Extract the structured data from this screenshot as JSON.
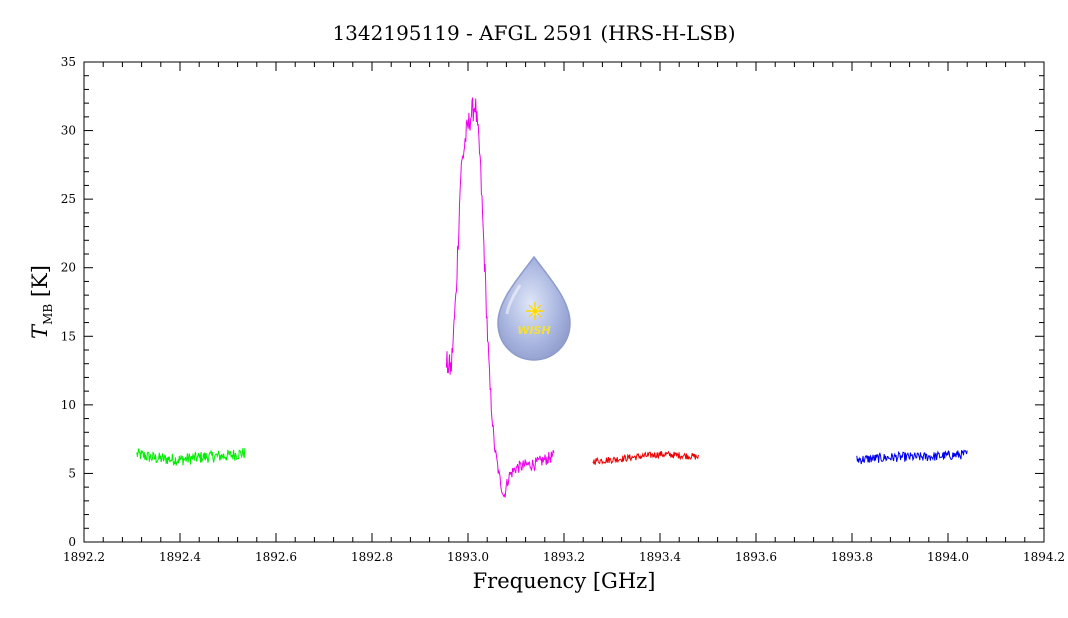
{
  "chart_data": {
    "type": "line",
    "title": "1342195119 - AFGL 2591 (HRS-H-LSB)",
    "xlabel": "Frequency [GHz]",
    "ylabel_main": "T",
    "ylabel_sub": "MB",
    "ylabel_unit": " [K]",
    "xlim": [
      1892.2,
      1894.2
    ],
    "ylim": [
      0,
      35
    ],
    "xticks": [
      1892.2,
      1892.4,
      1892.6,
      1892.8,
      1893.0,
      1893.2,
      1893.4,
      1893.6,
      1893.8,
      1894.0,
      1894.2
    ],
    "xtick_labels": [
      "1892.2",
      "1892.4",
      "1892.6",
      "1892.8",
      "1893.0",
      "1893.2",
      "1893.4",
      "1893.6",
      "1893.8",
      "1894.0",
      "1894.2"
    ],
    "yticks": [
      0,
      5,
      10,
      15,
      20,
      25,
      30,
      35
    ],
    "ytick_labels": [
      "0",
      "5",
      "10",
      "15",
      "20",
      "25",
      "30",
      "35"
    ],
    "grid": false,
    "logo_text": "WISH",
    "series": [
      {
        "color": "#00ee00",
        "x": [
          1892.31,
          1892.35,
          1892.4,
          1892.45,
          1892.5,
          1892.535
        ],
        "y": [
          6.4,
          6.1,
          6.0,
          6.2,
          6.3,
          6.5
        ],
        "noise": 0.45
      },
      {
        "color": "#ee00ee",
        "x": [
          1892.955,
          1892.965,
          1892.975,
          1892.985,
          1892.995,
          1893.005,
          1893.015,
          1893.025,
          1893.035,
          1893.045,
          1893.055,
          1893.065,
          1893.075,
          1893.085,
          1893.1,
          1893.12,
          1893.14,
          1893.16,
          1893.18
        ],
        "y": [
          13.0,
          12.6,
          18.0,
          27.0,
          29.5,
          31.0,
          32.0,
          28.0,
          20.0,
          11.5,
          7.0,
          4.8,
          3.3,
          4.8,
          5.4,
          5.6,
          5.7,
          6.0,
          6.3
        ],
        "noise": 0.45
      },
      {
        "color": "#ee0000",
        "x": [
          1893.26,
          1893.3,
          1893.35,
          1893.4,
          1893.45,
          1893.48
        ],
        "y": [
          5.9,
          6.0,
          6.2,
          6.4,
          6.3,
          6.2
        ],
        "noise": 0.25
      },
      {
        "color": "#0000ee",
        "x": [
          1893.81,
          1893.85,
          1893.9,
          1893.95,
          1894.0,
          1894.04
        ],
        "y": [
          6.0,
          6.1,
          6.2,
          6.2,
          6.3,
          6.4
        ],
        "noise": 0.35
      }
    ]
  }
}
